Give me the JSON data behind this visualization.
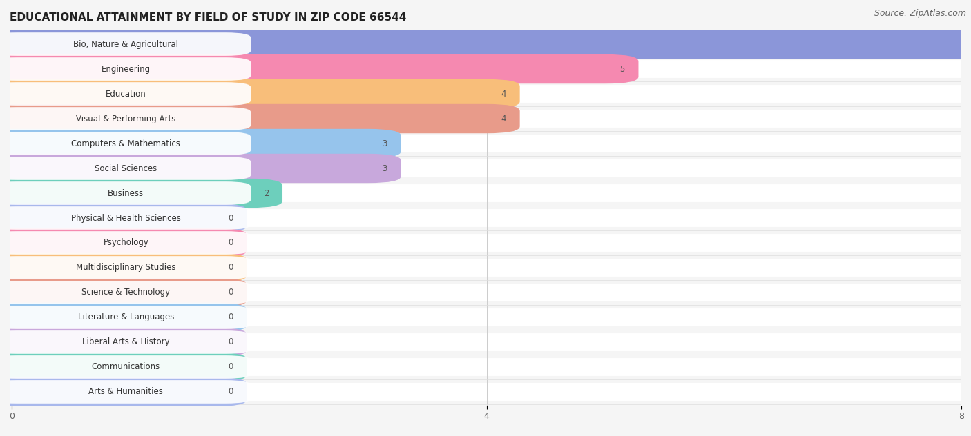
{
  "title": "EDUCATIONAL ATTAINMENT BY FIELD OF STUDY IN ZIP CODE 66544",
  "source": "Source: ZipAtlas.com",
  "categories": [
    "Bio, Nature & Agricultural",
    "Engineering",
    "Education",
    "Visual & Performing Arts",
    "Computers & Mathematics",
    "Social Sciences",
    "Business",
    "Physical & Health Sciences",
    "Psychology",
    "Multidisciplinary Studies",
    "Science & Technology",
    "Literature & Languages",
    "Liberal Arts & History",
    "Communications",
    "Arts & Humanities"
  ],
  "values": [
    8,
    5,
    4,
    4,
    3,
    3,
    2,
    0,
    0,
    0,
    0,
    0,
    0,
    0,
    0
  ],
  "bar_colors": [
    "#8b96d9",
    "#f589b0",
    "#f8be7a",
    "#e89b8a",
    "#96c4ec",
    "#c8a8dc",
    "#6dcfbc",
    "#a8b8ec",
    "#f589b0",
    "#f8be7a",
    "#e89b8a",
    "#96c4ec",
    "#c8a8dc",
    "#6dcfbc",
    "#a8b8ec"
  ],
  "xlim": [
    0,
    8
  ],
  "xticks": [
    0,
    4,
    8
  ],
  "background_color": "#f5f5f5",
  "row_bg_color": "#ffffff",
  "title_fontsize": 11,
  "source_fontsize": 9,
  "label_fontsize": 8.5
}
